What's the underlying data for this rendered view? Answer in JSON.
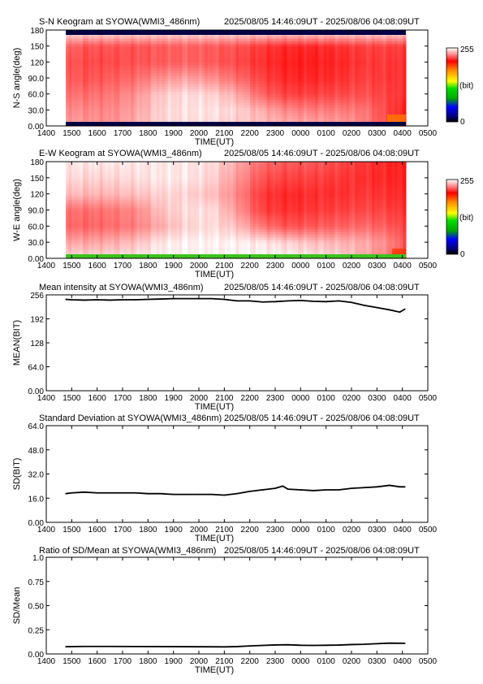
{
  "header": {
    "time_range": "2025/08/05 14:46:09UT - 2025/08/06 04:08:09UT"
  },
  "x_axis": {
    "label": "TIME(UT)",
    "ticks": [
      "1400",
      "1500",
      "1600",
      "1700",
      "1800",
      "1900",
      "2000",
      "2100",
      "2200",
      "2300",
      "0000",
      "0100",
      "0200",
      "0300",
      "0400",
      "0500"
    ],
    "range_hours": [
      14,
      29
    ],
    "data_start": 14.769,
    "data_end": 28.136
  },
  "colorbar": {
    "max_label": "255",
    "unit_label": "(bit)",
    "min_label": "0"
  },
  "panels": {
    "sn": {
      "title": "S-N Keogram at SYOWA(WMI3_486nm)",
      "ylabel": "N-S angle(deg)",
      "yticks": [
        "0.00",
        "30.0",
        "60.0",
        "90.0",
        "120",
        "150",
        "180"
      ],
      "ylim": [
        0,
        180
      ]
    },
    "ew": {
      "title": "E-W Keogram at SYOWA(WMI3_486nm)",
      "ylabel": "W-E angle(deg)",
      "yticks": [
        "0.00",
        "30.0",
        "60.0",
        "90.0",
        "120",
        "150",
        "180"
      ],
      "ylim": [
        0,
        180
      ]
    },
    "mean": {
      "title": "Mean intensity at SYOWA(WMI3_486nm)",
      "ylabel": "MEAN(BIT)",
      "yticks": [
        "0.00",
        "64.0",
        "128",
        "192",
        "256"
      ],
      "ylim": [
        0,
        256
      ]
    },
    "sd": {
      "title": "Standard Deviation at SYOWA(WMI3_486nm)",
      "ylabel": "SD(BIT)",
      "yticks": [
        "0.00",
        "16.0",
        "32.0",
        "48.0",
        "64.0"
      ],
      "ylim": [
        0,
        64
      ]
    },
    "ratio": {
      "title": "Ratio of SD/Mean at SYOWA(WMI3_486nm)",
      "ylabel": "SD/Mean",
      "yticks": [
        "0.00",
        "0.25",
        "0.50",
        "0.75",
        "1.0"
      ],
      "ylim": [
        0,
        1
      ]
    }
  },
  "colors": {
    "line": "#000000",
    "keogram_red": "#e8141c",
    "keogram_dark": "#000044",
    "floor_green": "#3cc21c"
  },
  "chart_data": [
    {
      "type": "heatmap",
      "title": "S-N Keogram at SYOWA(WMI3_486nm)",
      "xlabel": "TIME(UT)",
      "ylabel": "N-S angle(deg)",
      "ylim": [
        0,
        180
      ],
      "x": [
        14.77,
        15.5,
        16.5,
        17.5,
        18.5,
        19.5,
        20.5,
        21.5,
        22.5,
        23.5,
        24.5,
        25.5,
        26.5,
        27.5,
        28.1
      ],
      "y_bands": [
        0,
        30,
        60,
        90,
        120,
        150,
        180
      ],
      "description_values": [
        [
          90,
          100,
          110,
          80,
          40,
          30,
          30,
          50,
          60,
          70,
          80,
          90,
          120,
          200,
          250
        ],
        [
          110,
          120,
          120,
          90,
          40,
          25,
          25,
          40,
          80,
          120,
          130,
          130,
          140,
          200,
          240
        ],
        [
          140,
          150,
          140,
          110,
          50,
          30,
          40,
          80,
          160,
          200,
          200,
          190,
          180,
          200,
          220
        ],
        [
          160,
          180,
          170,
          150,
          110,
          90,
          110,
          150,
          200,
          230,
          230,
          220,
          200,
          210,
          220
        ],
        [
          170,
          190,
          190,
          180,
          170,
          160,
          170,
          190,
          220,
          240,
          240,
          230,
          210,
          210,
          220
        ],
        [
          150,
          180,
          180,
          180,
          170,
          160,
          170,
          180,
          210,
          230,
          230,
          220,
          200,
          200,
          210
        ],
        [
          0,
          0,
          0,
          0,
          0,
          0,
          0,
          0,
          0,
          0,
          0,
          0,
          0,
          0,
          0
        ]
      ]
    },
    {
      "type": "heatmap",
      "title": "E-W Keogram at SYOWA(WMI3_486nm)",
      "xlabel": "TIME(UT)",
      "ylabel": "W-E angle(deg)",
      "ylim": [
        0,
        180
      ],
      "x": [
        14.77,
        15.5,
        16.5,
        17.5,
        18.5,
        19.5,
        20.5,
        21.5,
        22.5,
        23.5,
        24.5,
        25.5,
        26.5,
        27.5,
        28.1
      ],
      "y_bands": [
        0,
        30,
        60,
        90,
        120,
        150,
        180
      ],
      "description_values": [
        [
          30,
          30,
          30,
          20,
          10,
          10,
          10,
          10,
          10,
          10,
          20,
          40,
          80,
          140,
          200
        ],
        [
          80,
          90,
          80,
          60,
          20,
          10,
          10,
          10,
          20,
          40,
          60,
          70,
          80,
          120,
          180
        ],
        [
          150,
          160,
          150,
          130,
          80,
          40,
          30,
          60,
          140,
          180,
          170,
          160,
          150,
          170,
          200
        ],
        [
          140,
          150,
          140,
          120,
          60,
          30,
          30,
          100,
          200,
          220,
          210,
          200,
          190,
          200,
          220
        ],
        [
          60,
          70,
          70,
          60,
          40,
          40,
          60,
          120,
          210,
          230,
          220,
          220,
          210,
          220,
          230
        ],
        [
          30,
          40,
          40,
          30,
          20,
          20,
          40,
          100,
          180,
          200,
          200,
          210,
          220,
          230,
          240
        ],
        [
          20,
          20,
          20,
          20,
          20,
          20,
          30,
          80,
          150,
          170,
          170,
          190,
          210,
          230,
          240
        ]
      ]
    },
    {
      "type": "line",
      "title": "Mean intensity at SYOWA(WMI3_486nm)",
      "xlabel": "TIME(UT)",
      "ylabel": "MEAN(BIT)",
      "ylim": [
        0,
        256
      ],
      "series": [
        {
          "x": [
            14.77,
            15.0,
            15.5,
            16.0,
            16.5,
            17.0,
            17.5,
            18.0,
            18.5,
            19.0,
            19.5,
            20.0,
            20.5,
            21.0,
            21.5,
            22.0,
            22.5,
            23.0,
            23.5,
            24.0,
            24.5,
            25.0,
            25.5,
            26.0,
            26.5,
            27.0,
            27.5,
            27.9,
            28.1
          ],
          "y": [
            244,
            243,
            242,
            243,
            242,
            243,
            243,
            244,
            245,
            246,
            246,
            246,
            246,
            244,
            240,
            240,
            237,
            238,
            240,
            241,
            239,
            238,
            240,
            236,
            228,
            222,
            216,
            210,
            218
          ]
        }
      ]
    },
    {
      "type": "line",
      "title": "Standard Deviation at SYOWA(WMI3_486nm)",
      "xlabel": "TIME(UT)",
      "ylabel": "SD(BIT)",
      "ylim": [
        0,
        64
      ],
      "series": [
        {
          "x": [
            14.77,
            15.0,
            15.5,
            16.0,
            16.5,
            17.0,
            17.5,
            18.0,
            18.5,
            19.0,
            19.5,
            20.0,
            20.5,
            21.0,
            21.5,
            22.0,
            22.5,
            23.0,
            23.3,
            23.5,
            24.0,
            24.5,
            25.0,
            25.5,
            26.0,
            26.5,
            27.0,
            27.5,
            27.9,
            28.1
          ],
          "y": [
            19,
            19.5,
            20,
            19.5,
            19.5,
            19.5,
            19.5,
            19,
            19,
            18.5,
            18.5,
            18.5,
            18.5,
            18,
            19,
            20.5,
            21.5,
            22.5,
            24,
            22,
            21.5,
            21,
            21.5,
            21.5,
            22.5,
            23,
            23.5,
            24.5,
            23.5,
            23.5
          ]
        }
      ]
    },
    {
      "type": "line",
      "title": "Ratio of SD/Mean at SYOWA(WMI3_486nm)",
      "xlabel": "TIME(UT)",
      "ylabel": "SD/Mean",
      "ylim": [
        0,
        1
      ],
      "series": [
        {
          "x": [
            14.77,
            15.5,
            16.5,
            17.5,
            18.5,
            19.5,
            20.5,
            21.0,
            21.5,
            22.0,
            22.5,
            23.0,
            23.5,
            24.0,
            24.5,
            25.0,
            25.5,
            26.0,
            26.5,
            27.0,
            27.5,
            28.1
          ],
          "y": [
            0.075,
            0.078,
            0.078,
            0.077,
            0.076,
            0.075,
            0.074,
            0.073,
            0.076,
            0.083,
            0.088,
            0.093,
            0.095,
            0.09,
            0.088,
            0.09,
            0.092,
            0.097,
            0.1,
            0.106,
            0.112,
            0.11
          ]
        }
      ]
    }
  ]
}
